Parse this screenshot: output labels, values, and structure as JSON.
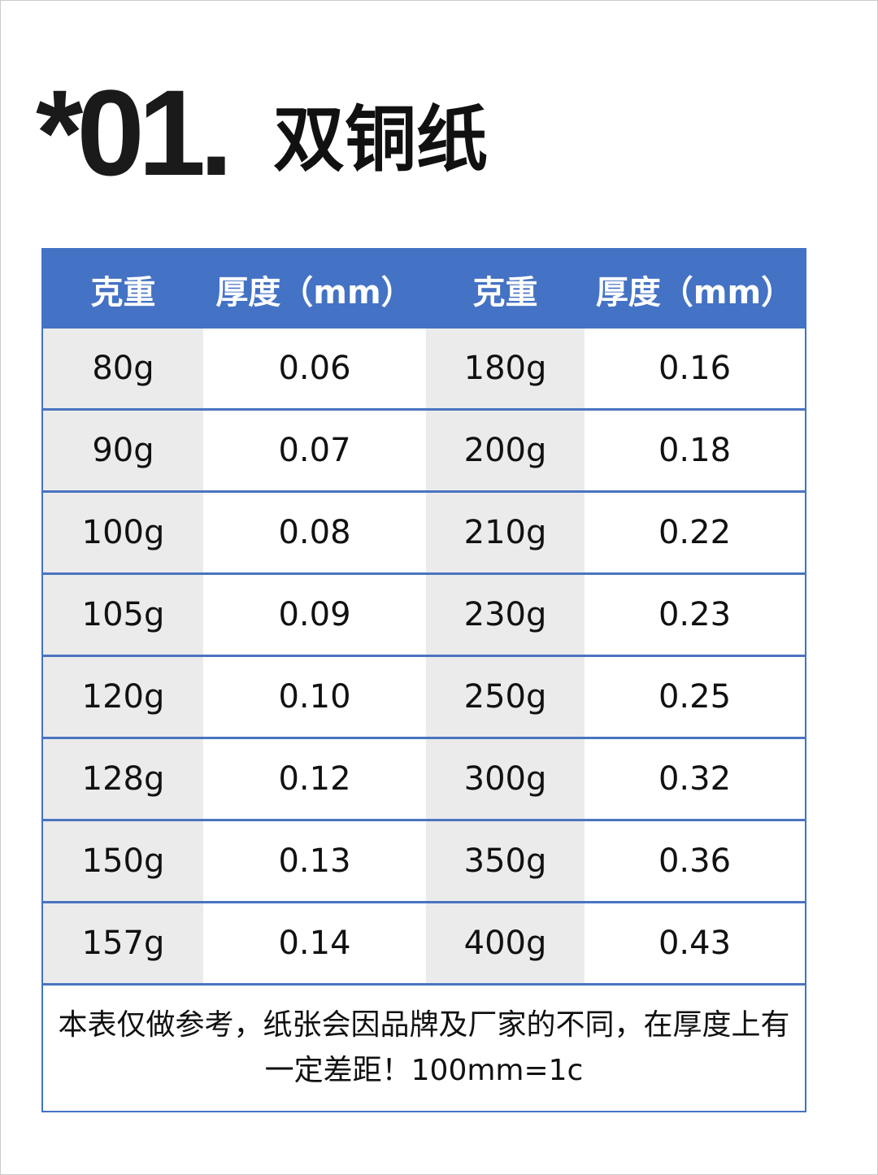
{
  "title": {
    "number": "*01.",
    "text": "双铜纸"
  },
  "table": {
    "headers": [
      "克重",
      "厚度（mm）",
      "克重",
      "厚度（mm）"
    ],
    "rows": [
      [
        "80g",
        "0.06",
        "180g",
        "0.16"
      ],
      [
        "90g",
        "0.07",
        "200g",
        "0.18"
      ],
      [
        "100g",
        "0.08",
        "210g",
        "0.22"
      ],
      [
        "105g",
        "0.09",
        "230g",
        "0.23"
      ],
      [
        "120g",
        "0.10",
        "250g",
        "0.25"
      ],
      [
        "128g",
        "0.12",
        "300g",
        "0.32"
      ],
      [
        "150g",
        "0.13",
        "350g",
        "0.36"
      ],
      [
        "157g",
        "0.14",
        "400g",
        "0.43"
      ]
    ],
    "note": "本表仅做参考，纸张会因品牌及厂家的不同，在厚度上有一定差距！100mm=1c"
  },
  "colors": {
    "header": "#4472c4",
    "alt_column": "#ebebeb",
    "border": "#4a74c0"
  }
}
